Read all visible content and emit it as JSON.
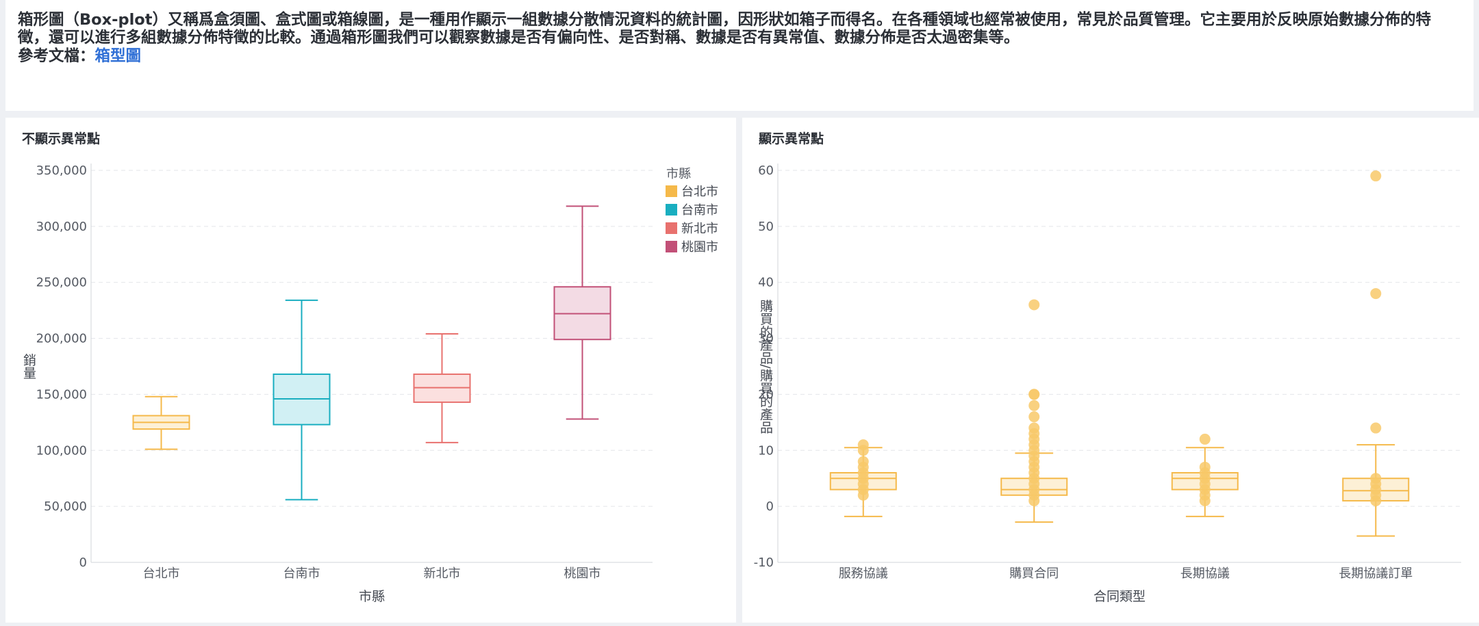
{
  "intro": {
    "description": "箱形圖（Box-plot）又稱爲盒須圖、盒式圖或箱線圖，是一種用作顯示一組數據分散情況資料的統計圖，因形狀如箱子而得名。在各種領域也經常被使用，常見於品質管理。它主要用於反映原始數據分佈的特徵，還可以進行多組數據分佈特徵的比較。通過箱形圖我們可以觀察數據是否有偏向性、是否對稱、數據是否有異常值、數據分佈是否太過密集等。",
    "ref_label": "參考文檔：",
    "ref_link": "箱型圖"
  },
  "left_panel": {
    "title": "不顯示異常點"
  },
  "right_panel": {
    "title": "顯示異常點"
  },
  "chart_data": [
    {
      "type": "box",
      "title": "不顯示異常點",
      "xlabel": "市縣",
      "ylabel": "銷量",
      "ylim": [
        0,
        350000
      ],
      "yticks": [
        0,
        50000,
        100000,
        150000,
        200000,
        250000,
        300000,
        350000
      ],
      "ytick_labels": [
        "0",
        "50,000",
        "100,000",
        "150,000",
        "200,000",
        "250,000",
        "300,000",
        "350,000"
      ],
      "grid": true,
      "legend": {
        "title": "市縣",
        "position": "top-right"
      },
      "categories": [
        "台北市",
        "台南市",
        "新北市",
        "桃園市"
      ],
      "colors": [
        "#f5b94a",
        "#19aec0",
        "#e8716e",
        "#c25077"
      ],
      "fill_colors": [
        "#fdf0d6",
        "#d1f0f4",
        "#fbe0df",
        "#f3dbe4"
      ],
      "boxes": [
        {
          "name": "台北市",
          "min": 101000,
          "q1": 119000,
          "median": 125000,
          "q3": 131000,
          "max": 148000
        },
        {
          "name": "台南市",
          "min": 56000,
          "q1": 123000,
          "median": 146000,
          "q3": 168000,
          "max": 234000
        },
        {
          "name": "新北市",
          "min": 107000,
          "q1": 143000,
          "median": 156000,
          "q3": 168000,
          "max": 204000
        },
        {
          "name": "桃園市",
          "min": 128000,
          "q1": 199000,
          "median": 222000,
          "q3": 246000,
          "max": 318000
        }
      ]
    },
    {
      "type": "box",
      "title": "顯示異常點",
      "xlabel": "合同類型",
      "ylabel": "購買的產品/購買的產品",
      "ylim": [
        -10,
        60
      ],
      "yticks": [
        -10,
        0,
        10,
        20,
        30,
        40,
        50,
        60
      ],
      "ytick_labels": [
        "-10",
        "0",
        "10",
        "20",
        "30",
        "40",
        "50",
        "60"
      ],
      "grid": true,
      "categories": [
        "服務協議",
        "購買合同",
        "長期協議",
        "長期協議訂單"
      ],
      "color": "#f5b94a",
      "fill_color": "#fdf0d6",
      "point_color": "#f8c96a",
      "boxes": [
        {
          "name": "服務協議",
          "min": -1.8,
          "q1": 3,
          "median": 5,
          "q3": 6,
          "max": 10.5,
          "points": [
            11,
            10,
            8,
            7,
            6,
            5,
            4,
            3,
            2
          ]
        },
        {
          "name": "購買合同",
          "min": -2.8,
          "q1": 2,
          "median": 3,
          "q3": 5,
          "max": 9.5,
          "points": [
            36,
            20,
            20,
            18,
            16,
            14,
            13,
            12,
            11,
            10,
            9,
            8,
            7,
            6,
            5,
            4,
            3,
            2,
            1
          ]
        },
        {
          "name": "長期協議",
          "min": -1.8,
          "q1": 3,
          "median": 5,
          "q3": 6,
          "max": 10.5,
          "points": [
            12,
            7,
            6,
            5,
            4,
            3,
            2,
            1
          ]
        },
        {
          "name": "長期協議訂單",
          "min": -5.3,
          "q1": 1,
          "median": 2.8,
          "q3": 5,
          "max": 11,
          "points": [
            59,
            38,
            14,
            5,
            4,
            3,
            2,
            1
          ]
        }
      ]
    }
  ]
}
